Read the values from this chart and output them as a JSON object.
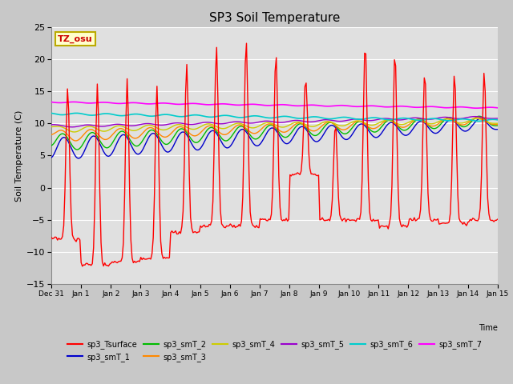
{
  "title": "SP3 Soil Temperature",
  "ylabel": "Soil Temperature (C)",
  "xlabel": "Time",
  "ylim": [
    -15,
    25
  ],
  "yticks": [
    -15,
    -10,
    -5,
    0,
    5,
    10,
    15,
    20,
    25
  ],
  "xtick_labels": [
    "Dec 31",
    "Jan 1",
    "Jan 2",
    "Jan 3",
    "Jan 4",
    "Jan 5",
    "Jan 6",
    "Jan 7",
    "Jan 8",
    "Jan 9",
    "Jan 10",
    "Jan 11",
    "Jan 12",
    "Jan 13",
    "Jan 14",
    "Jan 15"
  ],
  "fig_bg_color": "#c8c8c8",
  "plot_bg_color": "#e0e0e0",
  "grid_color": "#ffffff",
  "annotation_text": "TZ_osu",
  "annotation_bg": "#ffffcc",
  "annotation_border": "#bbaa00",
  "series_colors": {
    "sp3_Tsurface": "#ff0000",
    "sp3_smT_1": "#0000cc",
    "sp3_smT_2": "#00bb00",
    "sp3_smT_3": "#ff8800",
    "sp3_smT_4": "#cccc00",
    "sp3_smT_5": "#9900cc",
    "sp3_smT_6": "#00cccc",
    "sp3_smT_7": "#ff00ff"
  },
  "legend_labels": [
    "sp3_Tsurface",
    "sp3_smT_1",
    "sp3_smT_2",
    "sp3_smT_3",
    "sp3_smT_4",
    "sp3_smT_5",
    "sp3_smT_6",
    "sp3_smT_7"
  ]
}
